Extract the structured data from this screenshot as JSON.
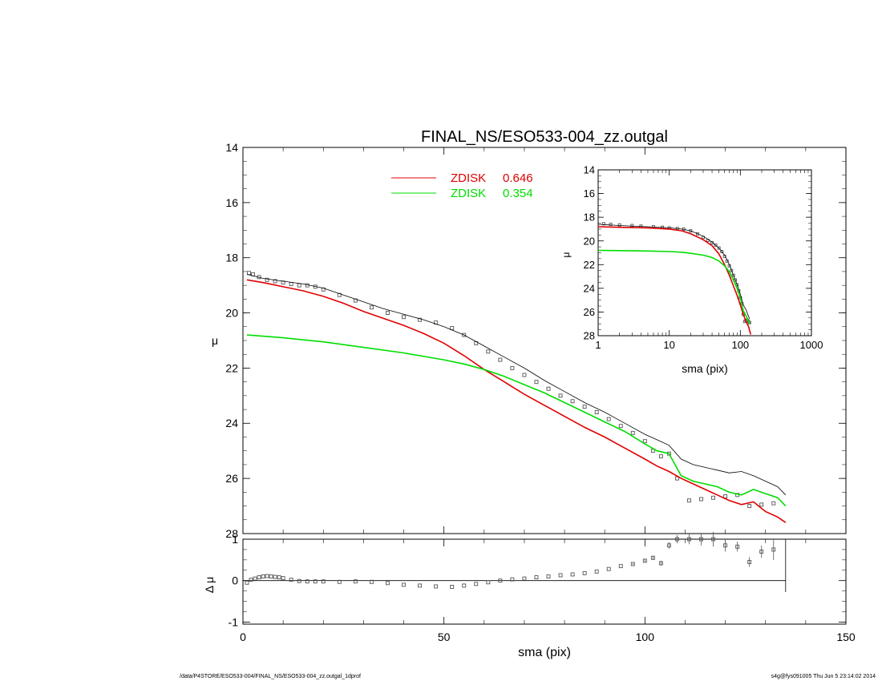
{
  "footer": {
    "path": "/data/P4STORE/ESO533-004/FINAL_NS/ESO533-004_zz.outgal_1dprof",
    "stamp": "s4g@fys091005  Thu Jun  5 23:14:02 2014"
  },
  "colors": {
    "red": "#e00000",
    "green": "#00dd00",
    "black": "#000000",
    "gray": "#555555"
  },
  "chart_data": [
    {
      "id": "main",
      "type": "line",
      "title": "FINAL_NS/ESO533-004_zz.outgal",
      "xlabel": "",
      "ylabel": "μ",
      "xlim": [
        0,
        150
      ],
      "ylim": [
        28,
        14
      ],
      "y_inverted": true,
      "xticks": [
        0,
        50,
        100,
        150
      ],
      "yticks": [
        14,
        16,
        18,
        20,
        22,
        24,
        26,
        28
      ],
      "legend": {
        "placement": "top-center",
        "entries": [
          {
            "name": "ZDISK",
            "value": "0.646",
            "color": "#e00000"
          },
          {
            "name": "ZDISK",
            "value": "0.354",
            "color": "#00dd00"
          }
        ]
      },
      "series": [
        {
          "name": "data",
          "style": "open-squares",
          "x": [
            1.5,
            2.5,
            4,
            6,
            8,
            10,
            12,
            14,
            16,
            18,
            20,
            24,
            28,
            32,
            36,
            40,
            44,
            48,
            52,
            55,
            58,
            61,
            64,
            67,
            70,
            73,
            76,
            79,
            82,
            85,
            88,
            91,
            94,
            97,
            100,
            102,
            104,
            106,
            108,
            111,
            114,
            117,
            120,
            123,
            126,
            129,
            132
          ],
          "y": [
            18.55,
            18.6,
            18.7,
            18.8,
            18.85,
            18.9,
            18.95,
            19.0,
            19.0,
            19.05,
            19.15,
            19.35,
            19.55,
            19.8,
            20.0,
            20.15,
            20.25,
            20.35,
            20.55,
            20.8,
            21.1,
            21.4,
            21.7,
            22.0,
            22.25,
            22.5,
            22.75,
            23.0,
            23.2,
            23.4,
            23.6,
            23.85,
            24.1,
            24.35,
            24.65,
            25.0,
            25.2,
            25.1,
            26.0,
            26.8,
            26.75,
            26.7,
            26.65,
            26.6,
            27.0,
            26.95,
            26.9
          ]
        },
        {
          "name": "total",
          "style": "thin-black-line",
          "x": [
            1,
            5,
            10,
            15,
            20,
            25,
            30,
            35,
            40,
            45,
            50,
            55,
            60,
            65,
            70,
            75,
            80,
            85,
            90,
            95,
            100,
            103,
            106,
            109,
            112,
            115,
            118,
            121,
            124,
            127,
            130,
            133,
            135
          ],
          "y": [
            18.6,
            18.75,
            18.85,
            18.95,
            19.1,
            19.35,
            19.6,
            19.85,
            20.05,
            20.25,
            20.5,
            20.8,
            21.2,
            21.6,
            22.0,
            22.45,
            22.85,
            23.25,
            23.6,
            24.0,
            24.4,
            24.6,
            24.8,
            25.3,
            25.5,
            25.6,
            25.7,
            25.8,
            25.75,
            25.9,
            26.1,
            26.3,
            26.6
          ]
        },
        {
          "name": "ZDISK 0.646",
          "style": "red-line",
          "x": [
            1,
            5,
            10,
            15,
            20,
            25,
            30,
            35,
            40,
            45,
            50,
            55,
            60,
            65,
            70,
            75,
            80,
            85,
            90,
            95,
            100,
            103,
            106,
            109,
            112,
            115,
            118,
            121,
            124,
            127,
            130,
            133,
            135
          ],
          "y": [
            18.8,
            18.9,
            19.05,
            19.2,
            19.4,
            19.65,
            19.95,
            20.2,
            20.45,
            20.75,
            21.1,
            21.55,
            22.05,
            22.5,
            22.95,
            23.35,
            23.75,
            24.15,
            24.5,
            24.9,
            25.3,
            25.55,
            25.75,
            26.0,
            26.2,
            26.4,
            26.6,
            26.8,
            26.95,
            26.85,
            27.2,
            27.4,
            27.6
          ]
        },
        {
          "name": "ZDISK 0.354",
          "style": "green-line",
          "x": [
            1,
            10,
            20,
            30,
            40,
            50,
            55,
            60,
            65,
            70,
            75,
            80,
            85,
            90,
            95,
            100,
            103,
            106,
            109,
            112,
            115,
            118,
            121,
            124,
            127,
            130,
            133,
            135
          ],
          "y": [
            20.8,
            20.9,
            21.05,
            21.25,
            21.45,
            21.7,
            21.85,
            22.05,
            22.3,
            22.6,
            22.9,
            23.25,
            23.6,
            23.95,
            24.3,
            24.75,
            25.0,
            25.1,
            25.9,
            26.1,
            26.2,
            26.3,
            26.5,
            26.6,
            26.4,
            26.55,
            26.7,
            27.0
          ]
        }
      ]
    },
    {
      "id": "residual",
      "type": "scatter",
      "title": "",
      "xlabel": "sma (pix)",
      "ylabel": "Δ μ",
      "xlim": [
        0,
        150
      ],
      "ylim": [
        -1.05,
        1.0
      ],
      "xticks": [
        0,
        50,
        100,
        150
      ],
      "yticks": [
        -1,
        0,
        1
      ],
      "grid": false,
      "zero_line": true,
      "series": [
        {
          "name": "residual",
          "style": "open-squares-with-errorbars",
          "x": [
            1,
            2,
            3,
            4,
            5,
            6,
            7,
            8,
            9,
            10,
            12,
            14,
            16,
            18,
            20,
            24,
            28,
            32,
            36,
            40,
            44,
            48,
            52,
            55,
            58,
            61,
            64,
            67,
            70,
            73,
            76,
            79,
            82,
            85,
            88,
            91,
            94,
            97,
            100,
            102,
            104,
            106,
            108,
            111,
            114,
            117,
            120,
            123,
            126,
            129,
            132
          ],
          "y": [
            -0.05,
            0.02,
            0.05,
            0.08,
            0.1,
            0.11,
            0.1,
            0.09,
            0.08,
            0.06,
            0.02,
            -0.01,
            -0.02,
            -0.02,
            -0.02,
            -0.03,
            -0.02,
            -0.03,
            -0.06,
            -0.1,
            -0.12,
            -0.14,
            -0.15,
            -0.12,
            -0.08,
            -0.04,
            0.0,
            0.03,
            0.05,
            0.08,
            0.1,
            0.13,
            0.15,
            0.18,
            0.22,
            0.28,
            0.35,
            0.4,
            0.48,
            0.55,
            0.42,
            0.85,
            1.0,
            1.0,
            1.0,
            1.0,
            0.85,
            0.82,
            0.45,
            0.7,
            0.75
          ],
          "err": [
            0,
            0,
            0,
            0,
            0,
            0,
            0,
            0,
            0,
            0,
            0,
            0,
            0,
            0,
            0,
            0,
            0,
            0,
            0,
            0,
            0,
            0,
            0,
            0,
            0,
            0,
            0,
            0,
            0,
            0,
            0,
            0,
            0,
            0,
            0,
            0,
            0,
            0.02,
            0.03,
            0.05,
            0.06,
            0.08,
            0.1,
            0.12,
            0.15,
            0.18,
            0.15,
            0.12,
            0.12,
            0.15,
            0.25
          ]
        }
      ]
    },
    {
      "id": "inset",
      "type": "line",
      "title": "",
      "xlabel": "sma (pix)",
      "ylabel": "μ",
      "xscale": "log",
      "xlim": [
        1,
        1000
      ],
      "ylim": [
        28,
        14
      ],
      "y_inverted": true,
      "xticks": [
        1,
        10,
        100,
        1000
      ],
      "yticks": [
        14,
        16,
        18,
        20,
        22,
        24,
        26,
        28
      ],
      "series": [
        {
          "name": "data",
          "style": "open-squares",
          "x": [
            1.2,
            1.5,
            2,
            3,
            4,
            6,
            8,
            10,
            13,
            16,
            20,
            25,
            30,
            35,
            40,
            45,
            50,
            55,
            60,
            65,
            70,
            75,
            80,
            85,
            90,
            95,
            100,
            105,
            110,
            115,
            120,
            125,
            130,
            135
          ],
          "y": [
            18.55,
            18.6,
            18.65,
            18.7,
            18.75,
            18.8,
            18.85,
            18.9,
            18.95,
            19.0,
            19.15,
            19.4,
            19.7,
            19.95,
            20.15,
            20.35,
            20.6,
            20.9,
            21.3,
            21.7,
            22.1,
            22.5,
            22.9,
            23.3,
            23.7,
            24.2,
            24.8,
            25.3,
            26.2,
            26.8,
            26.7,
            26.7,
            26.8,
            26.9
          ]
        },
        {
          "name": "total",
          "style": "thin-black-line",
          "x": [
            1,
            2,
            5,
            10,
            15,
            20,
            30,
            40,
            50,
            60,
            70,
            80,
            90,
            100,
            110,
            120,
            135
          ],
          "y": [
            18.6,
            18.7,
            18.8,
            18.9,
            19.0,
            19.15,
            19.6,
            20.1,
            20.6,
            21.2,
            22.0,
            22.9,
            23.7,
            24.5,
            25.4,
            25.8,
            26.6
          ]
        },
        {
          "name": "ZDISK 0.646",
          "style": "red-line",
          "x": [
            1,
            2,
            5,
            10,
            15,
            20,
            30,
            40,
            50,
            60,
            70,
            80,
            90,
            100,
            110,
            120,
            130,
            140
          ],
          "y": [
            18.8,
            18.85,
            18.9,
            19.0,
            19.15,
            19.4,
            19.9,
            20.4,
            21.1,
            22.0,
            22.9,
            23.8,
            24.6,
            25.4,
            26.2,
            26.8,
            27.2,
            27.9
          ]
        },
        {
          "name": "ZDISK 0.354",
          "style": "green-line",
          "x": [
            1,
            2,
            5,
            10,
            15,
            20,
            30,
            40,
            50,
            60,
            70,
            80,
            90,
            100,
            110,
            120,
            135
          ],
          "y": [
            20.8,
            20.82,
            20.85,
            20.9,
            20.95,
            21.05,
            21.2,
            21.4,
            21.7,
            22.1,
            22.6,
            23.3,
            24.0,
            24.8,
            25.9,
            26.3,
            27.0
          ]
        }
      ]
    }
  ]
}
